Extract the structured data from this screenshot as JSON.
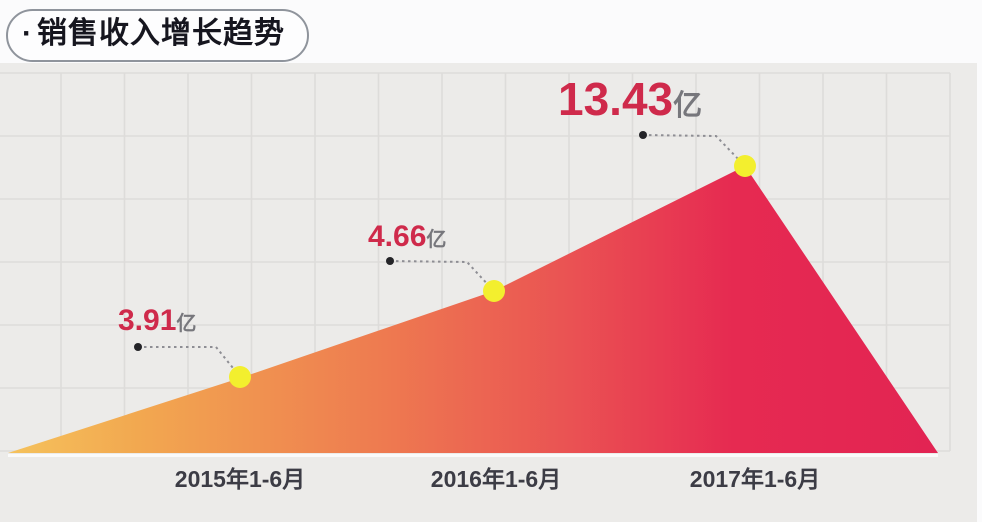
{
  "header": {
    "bullet": "·",
    "title": "销售收入增长趋势"
  },
  "chart_data": {
    "type": "area",
    "title": "销售收入增长趋势",
    "unit": "亿",
    "categories": [
      "2015年1-6月",
      "2016年1-6月",
      "2017年1-6月"
    ],
    "values": [
      3.91,
      4.66,
      13.43
    ],
    "value_labels": [
      "3.91",
      "4.66",
      "13.43"
    ],
    "xlabel": "",
    "ylabel": "",
    "grid": true,
    "legend": false,
    "note": "schematic area chart; single series of half-year sales revenue",
    "colors": {
      "gradient_left": "#F5C25C",
      "gradient_orange": "#F0994E",
      "gradient_salmon": "#EB6152",
      "gradient_right": "#E32453",
      "point_fill": "#F3EF2E",
      "value_text": "#CF2A4B",
      "unit_text": "#77777C",
      "axis_text": "#3C3C45",
      "grid_line": "#DDDCDA",
      "panel_bg": "#ECEBE9",
      "page_bg": "#FBFBFC"
    }
  }
}
